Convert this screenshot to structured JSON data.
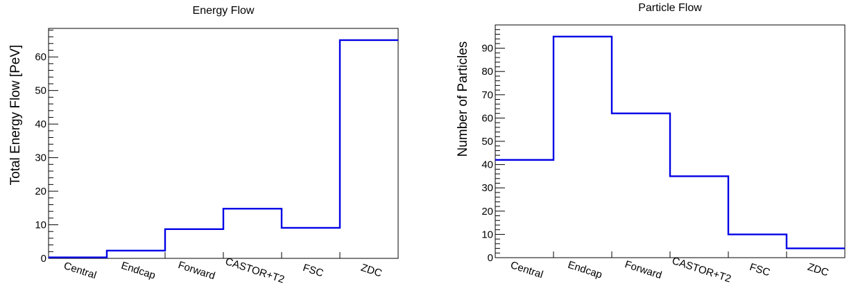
{
  "chart_data": [
    {
      "type": "step-histogram",
      "title": "Energy Flow",
      "xlabel": "",
      "ylabel": "Total Energy Flow  [PeV]",
      "categories": [
        "Central",
        "Endcap",
        "Forward",
        "CASTOR+T2",
        "FSC",
        "ZDC"
      ],
      "values": [
        0.3,
        2.3,
        8.7,
        14.8,
        9.1,
        65
      ],
      "ylim": [
        0,
        68.5
      ],
      "yticks": [
        0,
        10,
        20,
        30,
        40,
        50,
        60
      ],
      "line_color": "#0000e6",
      "grid": false
    },
    {
      "type": "step-histogram",
      "title": "Particle Flow",
      "xlabel": "",
      "ylabel": "Number of Particles",
      "categories": [
        "Central",
        "Endcap",
        "Forward",
        "CASTOR+T2",
        "FSC",
        "ZDC"
      ],
      "values": [
        42,
        95,
        62,
        35,
        10,
        4
      ],
      "ylim": [
        0,
        100
      ],
      "yticks": [
        0,
        10,
        20,
        30,
        40,
        50,
        60,
        70,
        80,
        90
      ],
      "line_color": "#0000e6",
      "grid": false
    }
  ]
}
